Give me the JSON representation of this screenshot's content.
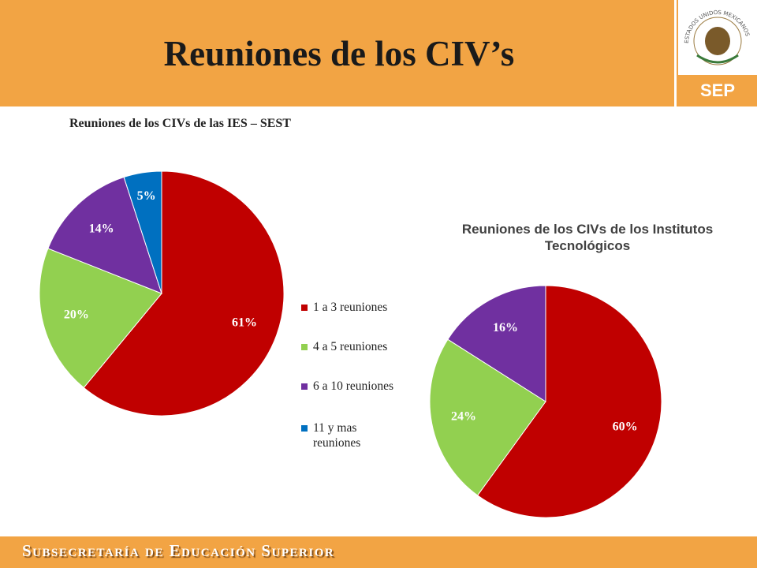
{
  "header": {
    "title": "Reuniones de los CIV’s"
  },
  "logo": {
    "seal_text": "ESTADOS UNIDOS MEXICANOS",
    "label": "SEP"
  },
  "footer": {
    "text": "Subsecretaría de Educación Superior"
  },
  "chart_data": [
    {
      "type": "pie",
      "title": "Reuniones de los CIVs de las IES – SEST",
      "categories": [
        "1 a 3 reuniones",
        "4 a 5 reuniones",
        "6 a 10 reuniones",
        "11 y mas reuniones"
      ],
      "values": [
        61,
        20,
        14,
        5
      ],
      "value_labels": [
        "61%",
        "20%",
        "14%",
        "5%"
      ],
      "colors": [
        "#c00000",
        "#92d050",
        "#7030a0",
        "#0070c0"
      ],
      "legend": "right"
    },
    {
      "type": "pie",
      "title": "Reuniones de los CIVs de los Institutos Tecnológicos",
      "values": [
        60,
        24,
        16
      ],
      "value_labels": [
        "60%",
        "24%",
        "16%"
      ],
      "colors": [
        "#c00000",
        "#92d050",
        "#7030a0"
      ]
    }
  ]
}
